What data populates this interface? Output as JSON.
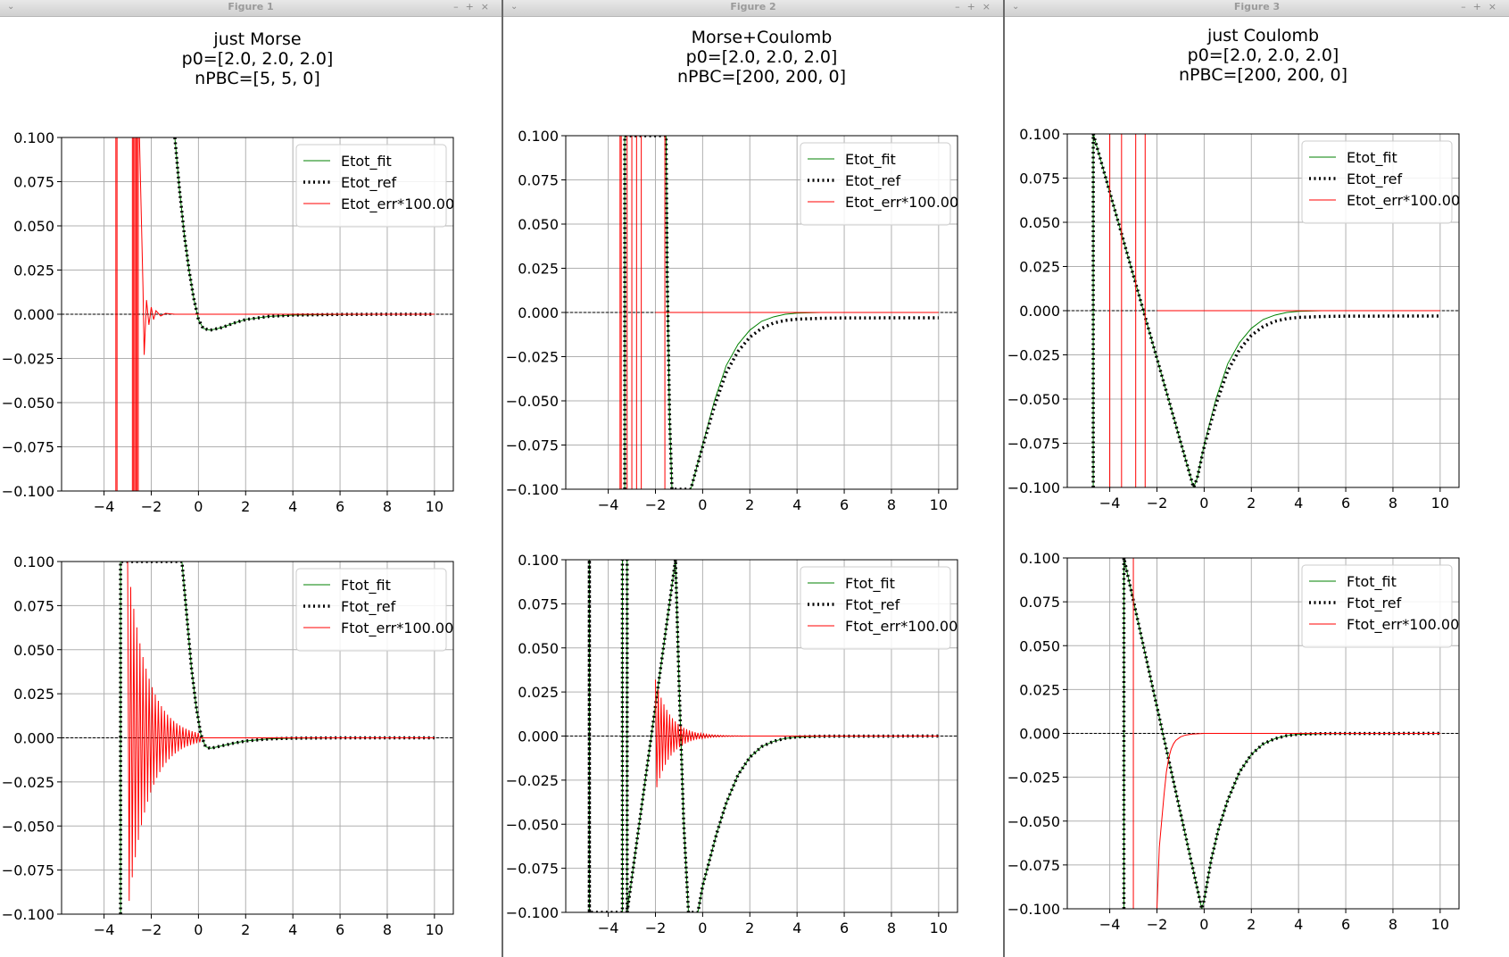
{
  "windows": [
    {
      "title": "Figure 1",
      "suptitle": [
        "just Morse",
        "p0=[2.0, 2.0, 2.0]",
        "nPBC=[5, 5, 0]"
      ]
    },
    {
      "title": "Figure 2",
      "suptitle": [
        "Morse+Coulomb",
        "p0=[2.0, 2.0, 2.0]",
        "nPBC=[200, 200, 0]"
      ]
    },
    {
      "title": "Figure 3",
      "suptitle": [
        "just Coulomb",
        "p0=[2.0, 2.0, 2.0]",
        "nPBC=[200, 200, 0]"
      ]
    }
  ],
  "window_controls": {
    "menu": "⌄",
    "min": "–",
    "max": "+",
    "close": "×"
  },
  "colors": {
    "fit": "#008000",
    "ref": "#000000",
    "err": "#ff0000",
    "grid": "#b0b0b0",
    "zero_line": "#000000"
  },
  "chart_data": [
    {
      "type": "line",
      "figure": 1,
      "row": 1,
      "xlim": [
        -5.8,
        10.8
      ],
      "ylim": [
        -0.1,
        0.1
      ],
      "xticks": [
        "−4",
        "−2",
        "0",
        "2",
        "4",
        "6",
        "8",
        "10"
      ],
      "yticks": [
        "−0.100",
        "−0.075",
        "−0.050",
        "−0.025",
        "0.000",
        "0.025",
        "0.050",
        "0.075",
        "0.100"
      ],
      "grid": true,
      "legend": "top-right",
      "legend_entries": [
        "Etot_fit",
        "Etot_ref",
        "Etot_err*100.00"
      ],
      "series": [
        {
          "name": "Etot_fit",
          "style": "solid",
          "color": "green",
          "x": [
            -1.0,
            -0.8,
            -0.6,
            -0.4,
            -0.2,
            0.0,
            0.2,
            0.5,
            1.0,
            1.5,
            2.0,
            3.0,
            4.0,
            6.0,
            8.0,
            10.0
          ],
          "y": [
            0.1,
            0.07,
            0.045,
            0.025,
            0.009,
            -0.003,
            -0.008,
            -0.009,
            -0.0075,
            -0.005,
            -0.003,
            -0.0012,
            -0.0005,
            -0.0001,
            0.0,
            0.0
          ]
        },
        {
          "name": "Etot_ref",
          "style": "dotted",
          "color": "black",
          "x": [
            -1.0,
            -0.8,
            -0.6,
            -0.4,
            -0.2,
            0.0,
            0.2,
            0.5,
            1.0,
            1.5,
            2.0,
            3.0,
            4.0,
            6.0,
            8.0,
            10.0
          ],
          "y": [
            0.1,
            0.07,
            0.045,
            0.025,
            0.009,
            -0.003,
            -0.008,
            -0.009,
            -0.0075,
            -0.005,
            -0.003,
            -0.0012,
            -0.0005,
            -0.0001,
            0.0,
            0.0
          ]
        },
        {
          "name": "Etot_err*100.00",
          "style": "solid",
          "color": "red",
          "spikes": [
            -3.5,
            -3.45,
            -2.8,
            -2.75,
            -2.7,
            -2.65,
            -2.6,
            -2.55
          ],
          "x": [
            -2.5,
            -2.35,
            -2.3,
            -2.2,
            -2.1,
            -2.0,
            -1.9,
            -1.8,
            -1.6,
            -1.4,
            -1.0,
            0.0,
            10.0
          ],
          "y": [
            0.1,
            0.015,
            -0.023,
            0.008,
            -0.006,
            0.004,
            -0.003,
            0.002,
            -0.001,
            0.0005,
            0.0,
            0.0,
            0.0
          ]
        }
      ]
    },
    {
      "type": "line",
      "figure": 1,
      "row": 2,
      "xlim": [
        -5.8,
        10.8
      ],
      "ylim": [
        -0.1,
        0.1
      ],
      "xticks": [
        "−4",
        "−2",
        "0",
        "2",
        "4",
        "6",
        "8",
        "10"
      ],
      "yticks": [
        "−0.100",
        "−0.075",
        "−0.050",
        "−0.025",
        "0.000",
        "0.025",
        "0.050",
        "0.075",
        "0.100"
      ],
      "grid": true,
      "legend": "top-right",
      "legend_entries": [
        "Ftot_fit",
        "Ftot_ref",
        "Ftot_err*100.00"
      ],
      "series": [
        {
          "name": "Ftot_fit",
          "style": "solid",
          "color": "green",
          "x": [
            -3.3,
            -3.3,
            -0.7,
            -0.5,
            -0.3,
            -0.1,
            0.1,
            0.3,
            0.5,
            1.0,
            1.5,
            2.0,
            3.0,
            4.0,
            6.0,
            10.0
          ],
          "y": [
            -0.1,
            0.1,
            0.1,
            0.07,
            0.04,
            0.018,
            0.002,
            -0.005,
            -0.006,
            -0.0045,
            -0.003,
            -0.0018,
            -0.0006,
            -0.0002,
            0.0,
            0.0
          ]
        },
        {
          "name": "Ftot_ref",
          "style": "dotted",
          "color": "black",
          "x": [
            -3.3,
            -3.3,
            -0.7,
            -0.5,
            -0.3,
            -0.1,
            0.1,
            0.3,
            0.5,
            1.0,
            1.5,
            2.0,
            3.0,
            4.0,
            6.0,
            10.0
          ],
          "y": [
            -0.1,
            0.1,
            0.1,
            0.07,
            0.04,
            0.018,
            0.002,
            -0.005,
            -0.006,
            -0.0045,
            -0.003,
            -0.0018,
            -0.0006,
            -0.0002,
            0.0,
            0.0
          ]
        },
        {
          "name": "Ftot_err*100.00",
          "style": "osc",
          "color": "red",
          "x_start": -3.0,
          "x_end": 0.1,
          "amp_start": 0.1,
          "decay": 1.2,
          "step": 0.065
        }
      ]
    },
    {
      "type": "line",
      "figure": 2,
      "row": 1,
      "xlim": [
        -5.8,
        10.8
      ],
      "ylim": [
        -0.1,
        0.1
      ],
      "xticks": [
        "−4",
        "−2",
        "0",
        "2",
        "4",
        "6",
        "8",
        "10"
      ],
      "yticks": [
        "−0.100",
        "−0.075",
        "−0.050",
        "−0.025",
        "0.000",
        "0.025",
        "0.050",
        "0.075",
        "0.100"
      ],
      "grid": true,
      "legend": "top-right",
      "legend_entries": [
        "Etot_fit",
        "Etot_ref",
        "Etot_err*100.00"
      ],
      "series": [
        {
          "name": "Etot_fit",
          "style": "solid",
          "color": "green",
          "x": [
            -3.3,
            -3.3,
            -1.55,
            -1.5,
            -1.4,
            -1.3,
            -0.5,
            -0.3,
            0.0,
            0.5,
            1.0,
            1.5,
            2.0,
            2.5,
            3.0,
            3.5,
            4.0,
            5.0,
            6.0,
            10.0
          ],
          "y": [
            -0.1,
            0.1,
            0.1,
            0.02,
            -0.06,
            -0.1,
            -0.1,
            -0.09,
            -0.075,
            -0.05,
            -0.03,
            -0.018,
            -0.01,
            -0.005,
            -0.0025,
            -0.001,
            -0.0004,
            0.0,
            0.0,
            0.0
          ]
        },
        {
          "name": "Etot_ref",
          "style": "dotted",
          "color": "black",
          "x": [
            -3.3,
            -3.3,
            -1.55,
            -1.5,
            -1.4,
            -1.3,
            -0.5,
            -0.3,
            0.0,
            0.5,
            1.0,
            1.5,
            2.0,
            2.5,
            3.0,
            3.5,
            4.0,
            5.0,
            6.0,
            10.0
          ],
          "y": [
            -0.1,
            0.1,
            0.1,
            0.02,
            -0.06,
            -0.1,
            -0.1,
            -0.09,
            -0.076,
            -0.053,
            -0.034,
            -0.022,
            -0.014,
            -0.009,
            -0.006,
            -0.0045,
            -0.0038,
            -0.0033,
            -0.0031,
            -0.003
          ]
        },
        {
          "name": "Etot_err*100.00",
          "style": "solid",
          "color": "red",
          "spikes": [
            -3.5,
            -3.45,
            -3.2,
            -3.0,
            -2.8,
            -2.6,
            -1.6
          ],
          "x": [
            -2.0,
            10.0
          ],
          "y": [
            0.0,
            0.0
          ]
        }
      ]
    },
    {
      "type": "line",
      "figure": 2,
      "row": 2,
      "xlim": [
        -5.8,
        10.8
      ],
      "ylim": [
        -0.1,
        0.1
      ],
      "xticks": [
        "−4",
        "−2",
        "0",
        "2",
        "4",
        "6",
        "8",
        "10"
      ],
      "yticks": [
        "−0.100",
        "−0.075",
        "−0.050",
        "−0.025",
        "0.000",
        "0.025",
        "0.050",
        "0.075",
        "0.100"
      ],
      "grid": true,
      "legend": "top-right",
      "legend_entries": [
        "Ftot_fit",
        "Ftot_ref",
        "Ftot_err*100.00"
      ],
      "series": [
        {
          "name": "Ftot_fit",
          "style": "solid",
          "color": "green",
          "x": [
            -4.8,
            -4.8,
            -4.8,
            -3.4,
            -3.4,
            -3.2,
            -3.2,
            -1.15,
            -1.0,
            -0.8,
            -0.6,
            -0.4,
            -0.2,
            0.0,
            0.3,
            0.6,
            1.0,
            1.5,
            2.0,
            2.5,
            3.0,
            3.5,
            4.0,
            5.0,
            10.0
          ],
          "y": [
            -0.1,
            0.1,
            -0.1,
            -0.1,
            0.1,
            0.1,
            -0.1,
            0.1,
            0.03,
            -0.05,
            -0.1,
            -0.1,
            -0.1,
            -0.085,
            -0.07,
            -0.055,
            -0.038,
            -0.022,
            -0.012,
            -0.006,
            -0.003,
            -0.0013,
            -0.0005,
            -0.0001,
            0.0
          ]
        },
        {
          "name": "Ftot_ref",
          "style": "dotted",
          "color": "black",
          "x": [
            -4.8,
            -4.8,
            -4.8,
            -3.4,
            -3.4,
            -3.2,
            -3.2,
            -1.15,
            -1.0,
            -0.8,
            -0.6,
            -0.4,
            -0.2,
            0.0,
            0.3,
            0.6,
            1.0,
            1.5,
            2.0,
            2.5,
            3.0,
            3.5,
            4.0,
            5.0,
            10.0
          ],
          "y": [
            -0.1,
            0.1,
            -0.1,
            -0.1,
            0.1,
            0.1,
            -0.1,
            0.1,
            0.03,
            -0.05,
            -0.1,
            -0.1,
            -0.1,
            -0.085,
            -0.07,
            -0.055,
            -0.038,
            -0.022,
            -0.012,
            -0.006,
            -0.003,
            -0.0013,
            -0.0005,
            -0.0001,
            0.0
          ]
        },
        {
          "name": "Ftot_err*100.00",
          "style": "osc",
          "color": "red",
          "x_start": -2.0,
          "x_end": 2.0,
          "amp_start": 0.032,
          "decay": 1.6,
          "step": 0.06
        }
      ]
    },
    {
      "type": "line",
      "figure": 3,
      "row": 1,
      "xlim": [
        -5.8,
        10.8
      ],
      "ylim": [
        -0.1,
        0.1
      ],
      "xticks": [
        "−4",
        "−2",
        "0",
        "2",
        "4",
        "6",
        "8",
        "10"
      ],
      "yticks": [
        "−0.100",
        "−0.075",
        "−0.050",
        "−0.025",
        "0.000",
        "0.025",
        "0.050",
        "0.075",
        "0.100"
      ],
      "grid": true,
      "legend": "top-right",
      "legend_entries": [
        "Etot_fit",
        "Etot_ref",
        "Etot_err*100.00"
      ],
      "series": [
        {
          "name": "Etot_fit",
          "style": "solid",
          "color": "green",
          "x": [
            -4.7,
            -4.7,
            -0.45,
            -0.3,
            0.0,
            0.5,
            1.0,
            1.5,
            2.0,
            2.5,
            3.0,
            3.5,
            4.0,
            5.0,
            6.0,
            10.0
          ],
          "y": [
            -0.1,
            0.1,
            -0.1,
            -0.095,
            -0.076,
            -0.05,
            -0.03,
            -0.018,
            -0.01,
            -0.005,
            -0.0025,
            -0.001,
            -0.0004,
            0.0,
            0.0,
            0.0
          ]
        },
        {
          "name": "Etot_ref",
          "style": "dotted",
          "color": "black",
          "x": [
            -4.7,
            -4.7,
            -0.45,
            -0.3,
            0.0,
            0.5,
            1.0,
            1.5,
            2.0,
            2.5,
            3.0,
            3.5,
            4.0,
            5.0,
            6.0,
            10.0
          ],
          "y": [
            -0.1,
            0.1,
            -0.1,
            -0.095,
            -0.077,
            -0.053,
            -0.034,
            -0.022,
            -0.014,
            -0.009,
            -0.006,
            -0.0045,
            -0.0038,
            -0.0033,
            -0.0031,
            -0.003
          ]
        },
        {
          "name": "Etot_err*100.00",
          "style": "solid",
          "color": "red",
          "spikes": [
            -4.0,
            -3.5,
            -2.9,
            -2.5
          ],
          "x": [
            -2.0,
            10.0
          ],
          "y": [
            0.0,
            0.0
          ]
        }
      ]
    },
    {
      "type": "line",
      "figure": 3,
      "row": 2,
      "xlim": [
        -5.8,
        10.8
      ],
      "ylim": [
        -0.1,
        0.1
      ],
      "xticks": [
        "−4",
        "−2",
        "0",
        "2",
        "4",
        "6",
        "8",
        "10"
      ],
      "yticks": [
        "−0.100",
        "−0.075",
        "−0.050",
        "−0.025",
        "0.000",
        "0.025",
        "0.050",
        "0.075",
        "0.100"
      ],
      "grid": true,
      "legend": "top-right",
      "legend_entries": [
        "Ftot_fit",
        "Ftot_ref",
        "Ftot_err*100.00"
      ],
      "series": [
        {
          "name": "Ftot_fit",
          "style": "solid",
          "color": "green",
          "x": [
            -3.4,
            -3.4,
            -0.1,
            0.0,
            0.3,
            0.6,
            1.0,
            1.5,
            2.0,
            2.5,
            3.0,
            3.5,
            4.0,
            5.0,
            10.0
          ],
          "y": [
            -0.1,
            0.1,
            -0.1,
            -0.095,
            -0.072,
            -0.055,
            -0.038,
            -0.022,
            -0.012,
            -0.006,
            -0.003,
            -0.0013,
            -0.0005,
            -0.0001,
            0.0
          ]
        },
        {
          "name": "Ftot_ref",
          "style": "dotted",
          "color": "black",
          "x": [
            -3.4,
            -3.4,
            -0.1,
            0.0,
            0.3,
            0.6,
            1.0,
            1.5,
            2.0,
            2.5,
            3.0,
            3.5,
            4.0,
            5.0,
            10.0
          ],
          "y": [
            -0.1,
            0.1,
            -0.1,
            -0.095,
            -0.072,
            -0.055,
            -0.038,
            -0.022,
            -0.012,
            -0.006,
            -0.003,
            -0.0013,
            -0.0005,
            -0.0001,
            0.0
          ]
        },
        {
          "name": "Ftot_err*100.00",
          "style": "solid",
          "color": "red",
          "spikes": [
            -3.0
          ],
          "x": [
            -2.0,
            -1.9,
            -1.8,
            -1.7,
            -1.6,
            -1.5,
            -1.4,
            -1.3,
            -1.2,
            -1.0,
            -0.8,
            -0.5,
            0.0,
            1.0,
            10.0
          ],
          "y": [
            -0.1,
            -0.065,
            -0.05,
            -0.035,
            -0.022,
            -0.014,
            -0.009,
            -0.006,
            -0.004,
            -0.002,
            -0.001,
            -0.0004,
            0.0,
            0.0,
            0.0
          ]
        }
      ]
    }
  ]
}
